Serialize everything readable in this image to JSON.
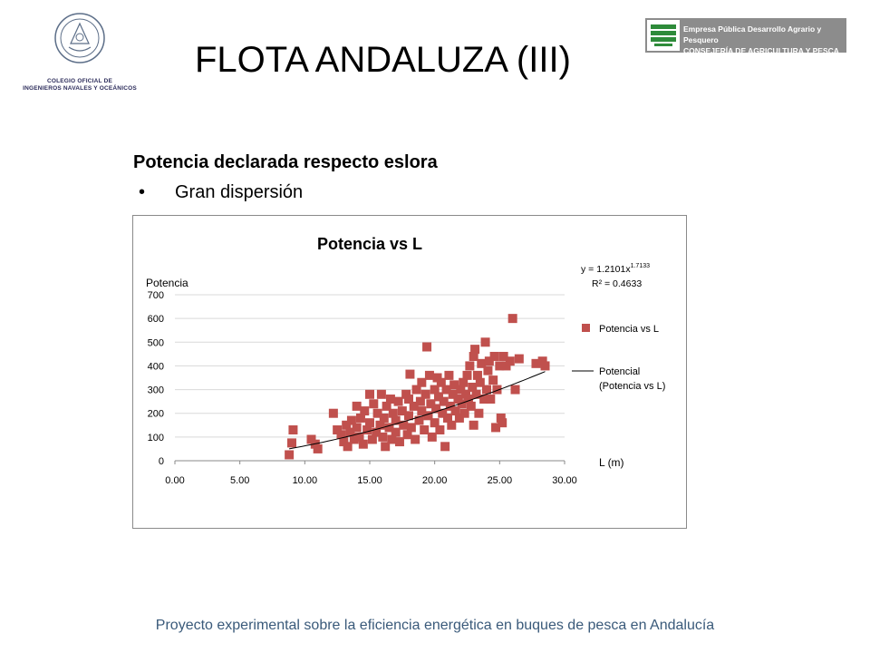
{
  "slide": {
    "title": "FLOTA ANDALUZA (III)",
    "subtitle": "Potencia declarada respecto eslora",
    "bullet": "Gran dispersión",
    "footer": "Proyecto experimental sobre la eficiencia energética en buques de pesca en Andalucía"
  },
  "logos": {
    "left_text_1": "COLEGIO OFICIAL DE",
    "left_text_2": "INGENIEROS NAVALES Y OCEÁNICOS",
    "right_text_1": "Empresa Pública Desarrollo Agrario y Pesquero",
    "right_text_2": "CONSEJERÍA DE AGRICULTURA Y PESCA"
  },
  "chart_data": {
    "type": "scatter",
    "title": "Potencia vs L",
    "xlabel": "L (m)",
    "ylabel": "Potencia",
    "xlim": [
      0,
      30
    ],
    "ylim": [
      0,
      700
    ],
    "xticks": [
      "0.00",
      "5.00",
      "10.00",
      "15.00",
      "20.00",
      "25.00",
      "30.00"
    ],
    "yticks": [
      "0",
      "100",
      "200",
      "300",
      "400",
      "500",
      "600",
      "700"
    ],
    "grid": "horizontal",
    "legend_position": "right",
    "colors": {
      "points": "#c0504d",
      "trend": "#000000",
      "grid": "#d9d9d9"
    },
    "equation": "y = 1.2101x",
    "equation_exponent": "1.7133",
    "r_squared": "R² = 0.4633",
    "series": [
      {
        "name": "Potencia vs L",
        "points": [
          [
            8.8,
            25
          ],
          [
            9.0,
            75
          ],
          [
            9.1,
            130
          ],
          [
            10.5,
            90
          ],
          [
            10.8,
            70
          ],
          [
            11.0,
            50
          ],
          [
            12.2,
            200
          ],
          [
            12.5,
            130
          ],
          [
            12.8,
            110
          ],
          [
            13.0,
            80
          ],
          [
            13.2,
            150
          ],
          [
            13.3,
            60
          ],
          [
            13.5,
            120
          ],
          [
            13.6,
            170
          ],
          [
            13.8,
            90
          ],
          [
            14.0,
            230
          ],
          [
            14.0,
            140
          ],
          [
            14.2,
            100
          ],
          [
            14.3,
            180
          ],
          [
            14.5,
            70
          ],
          [
            14.6,
            210
          ],
          [
            14.8,
            130
          ],
          [
            15.0,
            160
          ],
          [
            15.0,
            280
          ],
          [
            15.2,
            90
          ],
          [
            15.3,
            240
          ],
          [
            15.5,
            120
          ],
          [
            15.6,
            200
          ],
          [
            15.8,
            150
          ],
          [
            15.9,
            280
          ],
          [
            16.0,
            100
          ],
          [
            16.1,
            180
          ],
          [
            16.2,
            60
          ],
          [
            16.3,
            230
          ],
          [
            16.5,
            140
          ],
          [
            16.6,
            260
          ],
          [
            16.7,
            90
          ],
          [
            16.8,
            200
          ],
          [
            17.0,
            170
          ],
          [
            17.0,
            120
          ],
          [
            17.2,
            250
          ],
          [
            17.3,
            80
          ],
          [
            17.5,
            210
          ],
          [
            17.6,
            150
          ],
          [
            17.8,
            280
          ],
          [
            17.9,
            110
          ],
          [
            18.0,
            190
          ],
          [
            18.0,
            260
          ],
          [
            18.1,
            365
          ],
          [
            18.2,
            140
          ],
          [
            18.4,
            230
          ],
          [
            18.5,
            90
          ],
          [
            18.6,
            300
          ],
          [
            18.8,
            170
          ],
          [
            18.9,
            250
          ],
          [
            19.0,
            210
          ],
          [
            19.0,
            330
          ],
          [
            19.2,
            130
          ],
          [
            19.3,
            280
          ],
          [
            19.4,
            480
          ],
          [
            19.5,
            190
          ],
          [
            19.6,
            360
          ],
          [
            19.7,
            240
          ],
          [
            19.8,
            100
          ],
          [
            20.0,
            300
          ],
          [
            20.0,
            160
          ],
          [
            20.1,
            220
          ],
          [
            20.2,
            350
          ],
          [
            20.3,
            270
          ],
          [
            20.4,
            130
          ],
          [
            20.5,
            330
          ],
          [
            20.6,
            200
          ],
          [
            20.7,
            250
          ],
          [
            20.8,
            60
          ],
          [
            20.9,
            300
          ],
          [
            21.0,
            180
          ],
          [
            21.1,
            360
          ],
          [
            21.2,
            230
          ],
          [
            21.3,
            150
          ],
          [
            21.4,
            280
          ],
          [
            21.5,
            320
          ],
          [
            21.6,
            210
          ],
          [
            21.8,
            260
          ],
          [
            21.9,
            180
          ],
          [
            22.0,
            300
          ],
          [
            22.1,
            240
          ],
          [
            22.2,
            330
          ],
          [
            22.3,
            200
          ],
          [
            22.4,
            280
          ],
          [
            22.5,
            360
          ],
          [
            22.6,
            260
          ],
          [
            22.7,
            400
          ],
          [
            22.8,
            230
          ],
          [
            22.9,
            310
          ],
          [
            23.0,
            150
          ],
          [
            23.0,
            440
          ],
          [
            23.1,
            470
          ],
          [
            23.2,
            280
          ],
          [
            23.3,
            360
          ],
          [
            23.4,
            200
          ],
          [
            23.5,
            330
          ],
          [
            23.6,
            410
          ],
          [
            23.8,
            260
          ],
          [
            23.9,
            500
          ],
          [
            24.0,
            300
          ],
          [
            24.1,
            380
          ],
          [
            24.2,
            420
          ],
          [
            24.3,
            260
          ],
          [
            24.5,
            340
          ],
          [
            24.6,
            440
          ],
          [
            24.7,
            140
          ],
          [
            24.8,
            300
          ],
          [
            25.0,
            400
          ],
          [
            25.1,
            180
          ],
          [
            25.2,
            160
          ],
          [
            25.3,
            440
          ],
          [
            25.5,
            400
          ],
          [
            25.8,
            420
          ],
          [
            26.0,
            600
          ],
          [
            26.2,
            300
          ],
          [
            26.5,
            430
          ],
          [
            27.8,
            410
          ],
          [
            28.3,
            420
          ],
          [
            28.5,
            400
          ]
        ]
      },
      {
        "name": "Potencial (Potencia vs L)",
        "type": "power-trend",
        "coefficient": 1.2101,
        "exponent": 1.7133,
        "x_range": [
          8.8,
          28.5
        ]
      }
    ]
  }
}
